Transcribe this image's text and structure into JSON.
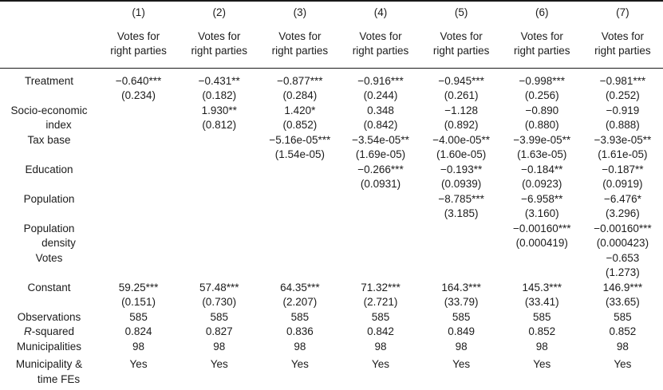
{
  "table": {
    "columns": [
      "(1)",
      "(2)",
      "(3)",
      "(4)",
      "(5)",
      "(6)",
      "(7)"
    ],
    "dep_var_lines": [
      "Votes for",
      "right parties"
    ],
    "coef_rows": [
      {
        "label_lines": [
          "Treatment"
        ],
        "coefs": [
          "−0.640***",
          "−0.431**",
          "−0.877***",
          "−0.916***",
          "−0.945***",
          "−0.998***",
          "−0.981***"
        ],
        "ses": [
          "(0.234)",
          "(0.182)",
          "(0.284)",
          "(0.244)",
          "(0.261)",
          "(0.256)",
          "(0.252)"
        ]
      },
      {
        "label_lines": [
          "Socio-economic",
          "index"
        ],
        "coefs": [
          "",
          "1.930**",
          "1.420*",
          "0.348",
          "−1.128",
          "−0.890",
          "−0.919"
        ],
        "ses": [
          "",
          "(0.812)",
          "(0.852)",
          "(0.842)",
          "(0.892)",
          "(0.880)",
          "(0.888)"
        ]
      },
      {
        "label_lines": [
          "Tax base"
        ],
        "coefs": [
          "",
          "",
          "−5.16e-05***",
          "−3.54e-05**",
          "−4.00e-05**",
          "−3.99e-05**",
          "−3.93e-05**"
        ],
        "ses": [
          "",
          "",
          "(1.54e-05)",
          "(1.69e-05)",
          "(1.60e-05)",
          "(1.63e-05)",
          "(1.61e-05)"
        ]
      },
      {
        "label_lines": [
          "Education"
        ],
        "coefs": [
          "",
          "",
          "",
          "−0.266***",
          "−0.193**",
          "−0.184**",
          "−0.187**"
        ],
        "ses": [
          "",
          "",
          "",
          "(0.0931)",
          "(0.0939)",
          "(0.0923)",
          "(0.0919)"
        ]
      },
      {
        "label_lines": [
          "Population"
        ],
        "coefs": [
          "",
          "",
          "",
          "",
          "−8.785***",
          "−6.958**",
          "−6.476*"
        ],
        "ses": [
          "",
          "",
          "",
          "",
          "(3.185)",
          "(3.160)",
          "(3.296)"
        ]
      },
      {
        "label_lines": [
          "Population",
          "density"
        ],
        "coefs": [
          "",
          "",
          "",
          "",
          "",
          "−0.00160***",
          "−0.00160***"
        ],
        "ses": [
          "",
          "",
          "",
          "",
          "",
          "(0.000419)",
          "(0.000423)"
        ]
      },
      {
        "label_lines": [
          "Votes"
        ],
        "coefs": [
          "",
          "",
          "",
          "",
          "",
          "",
          "−0.653"
        ],
        "ses": [
          "",
          "",
          "",
          "",
          "",
          "",
          "(1.273)"
        ]
      },
      {
        "label_lines": [
          "Constant"
        ],
        "coefs": [
          "59.25***",
          "57.48***",
          "64.35***",
          "71.32***",
          "164.3***",
          "145.3***",
          "146.9***"
        ],
        "ses": [
          "(0.151)",
          "(0.730)",
          "(2.207)",
          "(2.721)",
          "(33.79)",
          "(33.41)",
          "(33.65)"
        ]
      }
    ],
    "stat_rows": [
      {
        "label_lines": [
          "Observations"
        ],
        "values": [
          "585",
          "585",
          "585",
          "585",
          "585",
          "585",
          "585"
        ]
      },
      {
        "label_lines": [
          "R-squared"
        ],
        "italic_first_char": true,
        "values": [
          "0.824",
          "0.827",
          "0.836",
          "0.842",
          "0.849",
          "0.852",
          "0.852"
        ]
      },
      {
        "label_lines": [
          "Municipalities"
        ],
        "values": [
          "98",
          "98",
          "98",
          "98",
          "98",
          "98",
          "98"
        ]
      },
      {
        "label_lines": [
          "Municipality &",
          "time FEs"
        ],
        "values": [
          "Yes",
          "Yes",
          "Yes",
          "Yes",
          "Yes",
          "Yes",
          "Yes"
        ]
      }
    ]
  }
}
